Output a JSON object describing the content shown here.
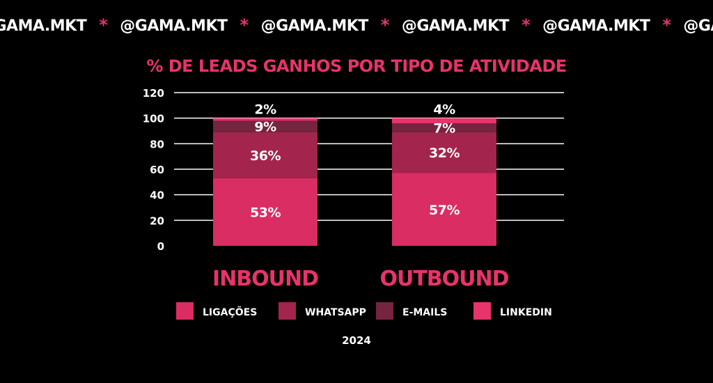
{
  "ticker": {
    "items": [
      "@GAMA.MKT",
      "@GAMA.MKT",
      "@GAMA.MKT",
      "@GAMA.MKT",
      "@GAMA.MKT",
      "@GAMA.MKT",
      "@GAMA.MKT"
    ],
    "separator": "*"
  },
  "colors": {
    "background": "#000000",
    "accent": "#e8336b",
    "ligacoes": "#d92d63",
    "whatsapp": "#a3244c",
    "emails": "#76243f",
    "linkedin": "#e8336b",
    "category_label": "#e8336b",
    "grid": "#ffffff"
  },
  "chart_data": {
    "type": "bar",
    "stacked": true,
    "title": "% DE LEADS GANHOS POR TIPO DE ATIVIDADE",
    "categories": [
      "INBOUND",
      "OUTBOUND"
    ],
    "series": [
      {
        "name": "LIGAÇÕES",
        "values": [
          53,
          57
        ],
        "labels": [
          "53%",
          "57%"
        ]
      },
      {
        "name": "WHATSAPP",
        "values": [
          36,
          32
        ],
        "labels": [
          "36%",
          "32%"
        ]
      },
      {
        "name": "E-MAILS",
        "values": [
          9,
          7
        ],
        "labels": [
          "9%",
          "7%"
        ]
      },
      {
        "name": "LINKEDIN",
        "values": [
          2,
          4
        ],
        "labels": [
          "2%",
          "4%"
        ]
      }
    ],
    "ylim": [
      0,
      120
    ],
    "yticks": [
      0,
      20,
      40,
      60,
      80,
      100,
      120
    ],
    "grid": true,
    "legend_position": "bottom",
    "footer": "2024"
  }
}
